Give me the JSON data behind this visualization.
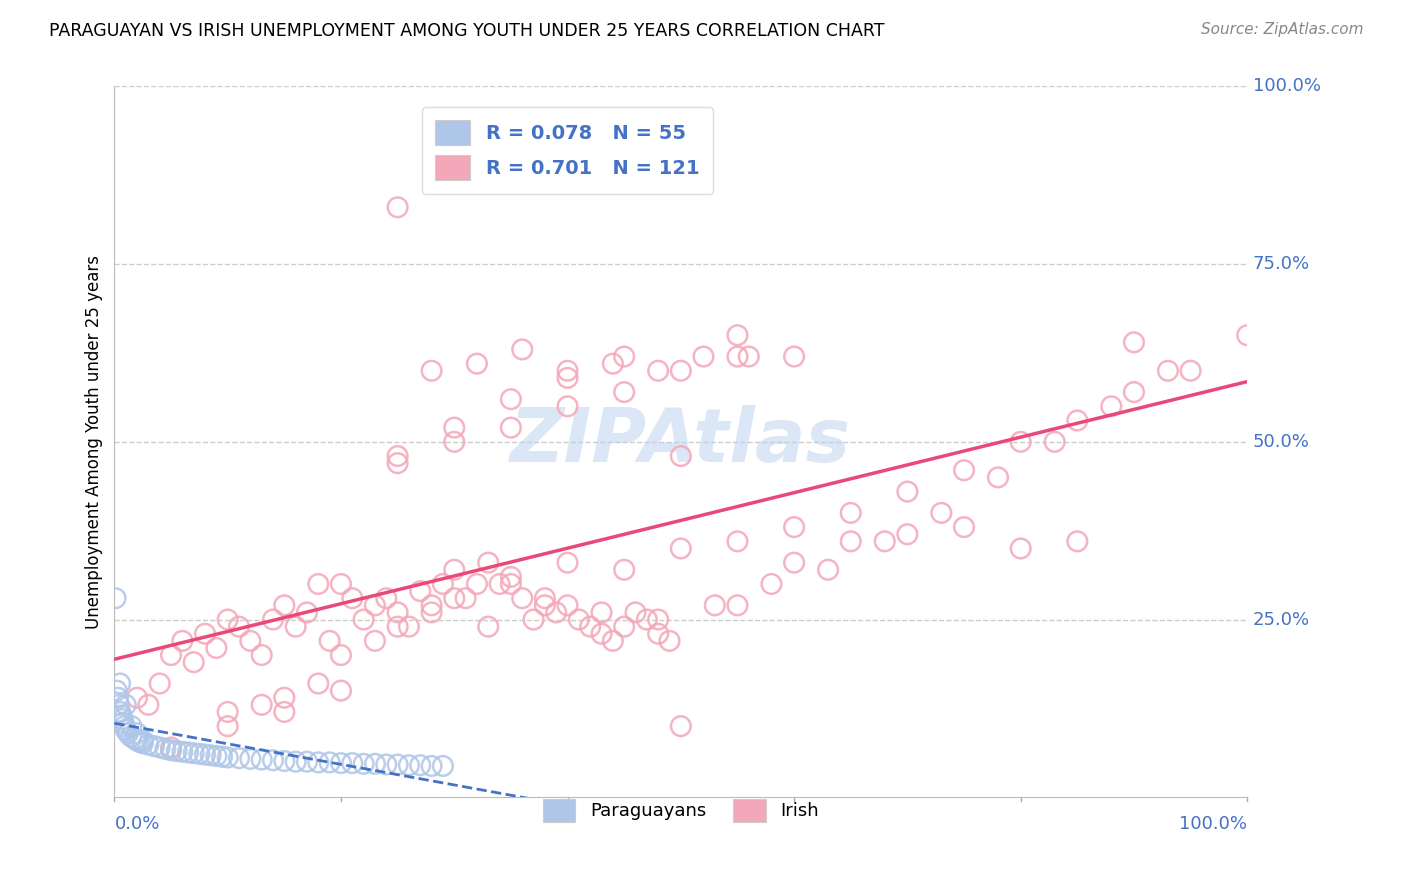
{
  "title": "PARAGUAYAN VS IRISH UNEMPLOYMENT AMONG YOUTH UNDER 25 YEARS CORRELATION CHART",
  "source": "Source: ZipAtlas.com",
  "ylabel": "Unemployment Among Youth under 25 years",
  "legend_label1": "Paraguayans",
  "legend_label2": "Irish",
  "paraguayan_color": "#aec6e8",
  "irish_color": "#f4a7b9",
  "paraguayan_line_color": "#4472C4",
  "irish_line_color": "#E8497A",
  "background_color": "#ffffff",
  "paraguayan_x": [
    0.001,
    0.002,
    0.003,
    0.004,
    0.005,
    0.006,
    0.007,
    0.008,
    0.009,
    0.01,
    0.012,
    0.015,
    0.018,
    0.02,
    0.022,
    0.025,
    0.03,
    0.035,
    0.04,
    0.045,
    0.05,
    0.055,
    0.06,
    0.065,
    0.07,
    0.075,
    0.08,
    0.085,
    0.09,
    0.095,
    0.1,
    0.11,
    0.12,
    0.13,
    0.14,
    0.15,
    0.16,
    0.17,
    0.18,
    0.19,
    0.2,
    0.21,
    0.22,
    0.23,
    0.24,
    0.25,
    0.26,
    0.27,
    0.28,
    0.29,
    0.005,
    0.01,
    0.015,
    0.02,
    0.025
  ],
  "paraguayan_y": [
    0.28,
    0.15,
    0.14,
    0.13,
    0.12,
    0.115,
    0.11,
    0.105,
    0.1,
    0.095,
    0.09,
    0.085,
    0.082,
    0.08,
    0.078,
    0.076,
    0.074,
    0.072,
    0.07,
    0.068,
    0.066,
    0.065,
    0.064,
    0.063,
    0.062,
    0.061,
    0.06,
    0.059,
    0.058,
    0.057,
    0.056,
    0.055,
    0.054,
    0.053,
    0.052,
    0.051,
    0.05,
    0.05,
    0.049,
    0.049,
    0.048,
    0.048,
    0.047,
    0.047,
    0.046,
    0.046,
    0.045,
    0.045,
    0.044,
    0.044,
    0.16,
    0.13,
    0.1,
    0.09,
    0.08
  ],
  "irish_x": [
    0.02,
    0.03,
    0.04,
    0.05,
    0.06,
    0.07,
    0.08,
    0.09,
    0.1,
    0.11,
    0.12,
    0.13,
    0.14,
    0.15,
    0.16,
    0.17,
    0.18,
    0.19,
    0.2,
    0.21,
    0.22,
    0.23,
    0.24,
    0.25,
    0.26,
    0.27,
    0.28,
    0.29,
    0.3,
    0.31,
    0.32,
    0.33,
    0.34,
    0.35,
    0.36,
    0.37,
    0.38,
    0.39,
    0.4,
    0.41,
    0.42,
    0.43,
    0.44,
    0.45,
    0.46,
    0.47,
    0.48,
    0.49,
    0.5,
    0.55,
    0.6,
    0.65,
    0.7,
    0.75,
    0.8,
    0.85,
    0.9,
    0.25,
    0.3,
    0.35,
    0.4,
    0.45,
    0.5,
    0.55,
    0.28,
    0.32,
    0.36,
    0.4,
    0.44,
    0.48,
    0.52,
    0.56,
    0.6,
    0.25,
    0.3,
    0.35,
    0.4,
    0.45,
    0.5,
    0.55,
    0.13,
    0.18,
    0.23,
    0.28,
    0.33,
    0.38,
    0.43,
    0.48,
    0.53,
    0.58,
    0.63,
    0.68,
    0.73,
    0.78,
    0.83,
    0.88,
    0.93,
    0.1,
    0.15,
    0.2,
    0.25,
    0.3,
    0.35,
    0.4,
    0.45,
    0.5,
    0.55,
    0.6,
    0.65,
    0.7,
    0.75,
    0.8,
    0.85,
    0.9,
    0.95,
    1.0,
    0.05,
    0.1,
    0.15,
    0.2,
    0.25
  ],
  "irish_y": [
    0.14,
    0.13,
    0.16,
    0.2,
    0.22,
    0.19,
    0.23,
    0.21,
    0.25,
    0.24,
    0.22,
    0.2,
    0.25,
    0.27,
    0.24,
    0.26,
    0.3,
    0.22,
    0.3,
    0.28,
    0.25,
    0.27,
    0.28,
    0.26,
    0.24,
    0.29,
    0.27,
    0.3,
    0.32,
    0.28,
    0.3,
    0.33,
    0.3,
    0.31,
    0.28,
    0.25,
    0.27,
    0.26,
    0.27,
    0.25,
    0.24,
    0.23,
    0.22,
    0.24,
    0.26,
    0.25,
    0.23,
    0.22,
    0.1,
    0.27,
    0.33,
    0.36,
    0.37,
    0.38,
    0.35,
    0.36,
    0.64,
    0.47,
    0.52,
    0.56,
    0.59,
    0.62,
    0.48,
    0.65,
    0.6,
    0.61,
    0.63,
    0.6,
    0.61,
    0.6,
    0.62,
    0.62,
    0.62,
    0.48,
    0.5,
    0.52,
    0.55,
    0.57,
    0.6,
    0.62,
    0.13,
    0.16,
    0.22,
    0.26,
    0.24,
    0.28,
    0.26,
    0.25,
    0.27,
    0.3,
    0.32,
    0.36,
    0.4,
    0.45,
    0.5,
    0.55,
    0.6,
    0.12,
    0.14,
    0.2,
    0.24,
    0.28,
    0.3,
    0.33,
    0.32,
    0.35,
    0.36,
    0.38,
    0.4,
    0.43,
    0.46,
    0.5,
    0.53,
    0.57,
    0.6,
    0.65,
    0.07,
    0.1,
    0.12,
    0.15,
    0.83
  ],
  "xlim": [
    0.0,
    1.0
  ],
  "ylim": [
    0.0,
    1.0
  ],
  "grid_color": "#cccccc",
  "tick_color": "#4472C4",
  "right_y_ticks": [
    0.25,
    0.5,
    0.75,
    1.0
  ],
  "right_y_labels": [
    "25.0%",
    "50.0%",
    "75.0%",
    "100.0%"
  ],
  "x_tick_positions": [
    0.0,
    0.2,
    0.4,
    0.6,
    0.8,
    1.0
  ]
}
